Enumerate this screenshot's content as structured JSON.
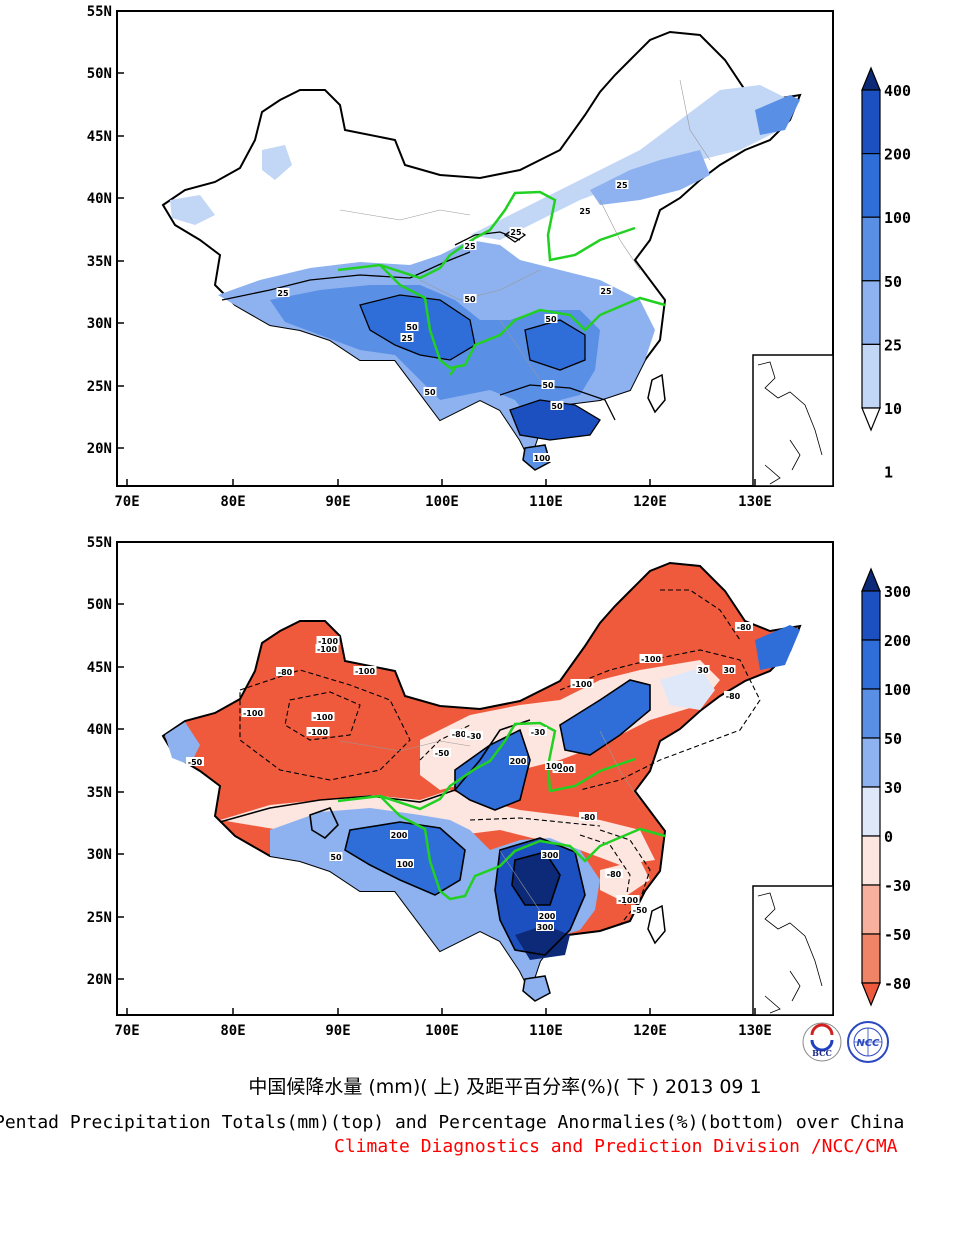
{
  "panels": [
    {
      "id": "top",
      "lat_labels": [
        "55N",
        "50N",
        "45N",
        "40N",
        "35N",
        "30N",
        "25N",
        "20N"
      ],
      "lon_labels": [
        "70E",
        "80E",
        "90E",
        "100E",
        "110E",
        "120E",
        "130E"
      ],
      "colorbar": {
        "labels": [
          "400",
          "200",
          "100",
          "50",
          "25",
          "10",
          "1"
        ],
        "colors": [
          "#0d2a78",
          "#1c4fbf",
          "#2f6ed8",
          "#5a8fe6",
          "#8eb2ef",
          "#c2d6f6",
          "#ffffff"
        ]
      },
      "contour_labels": [
        "25",
        "25",
        "25",
        "25",
        "25",
        "25",
        "25",
        "50",
        "50",
        "50",
        "50",
        "50",
        "100",
        "50"
      ]
    },
    {
      "id": "bottom",
      "lat_labels": [
        "55N",
        "50N",
        "45N",
        "40N",
        "35N",
        "30N",
        "25N",
        "20N"
      ],
      "lon_labels": [
        "70E",
        "80E",
        "90E",
        "100E",
        "110E",
        "120E",
        "130E"
      ],
      "colorbar": {
        "labels": [
          "300",
          "200",
          "100",
          "50",
          "30",
          "0",
          "-30",
          "-50",
          "-80"
        ],
        "colors": [
          "#0d2a78",
          "#1c4fbf",
          "#2f6ed8",
          "#5a8fe6",
          "#8eb2ef",
          "#dfe8f8",
          "#fde6e0",
          "#f7b09e",
          "#ef8467",
          "#f05a3c"
        ]
      },
      "contour_labels": [
        "-100",
        "-100",
        "-80",
        "-100",
        "-100",
        "-100",
        "-100",
        "-80",
        "-100",
        "-50",
        "-30",
        "-50",
        "200",
        "100",
        "-80",
        "-100",
        "-80",
        "-100",
        "30",
        "30",
        "200",
        "100",
        "300",
        "200",
        "300",
        "-100",
        "-80",
        "-50",
        "50",
        "-30",
        "-80"
      ]
    }
  ],
  "caption": {
    "zh": "中国候降水量 (mm)( 上) 及距平百分率(%)( 下 ) 2013 09 1",
    "en": "Pentad Precipitation Totals(mm)(top) and Percentage Anormalies(%)(bottom) over China",
    "org": "Climate Diagnostics and Prediction Division /NCC/CMA"
  },
  "logos": [
    "BCC",
    "NCC"
  ]
}
